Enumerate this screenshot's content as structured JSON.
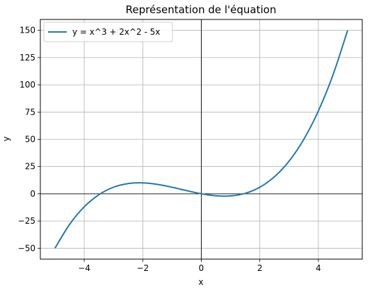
{
  "chart_data": {
    "type": "line",
    "title": "Représentation de l'équation",
    "xlabel": "x",
    "ylabel": "y",
    "xlim": [
      -5.5,
      5.5
    ],
    "ylim": [
      -60,
      160
    ],
    "xticks": [
      -4,
      -2,
      0,
      2,
      4
    ],
    "xtick_labels": [
      "−4",
      "−2",
      "0",
      "2",
      "4"
    ],
    "yticks": [
      -50,
      -25,
      0,
      25,
      50,
      75,
      100,
      125,
      150
    ],
    "ytick_labels": [
      "−50",
      "−25",
      "0",
      "25",
      "50",
      "75",
      "100",
      "125",
      "150"
    ],
    "grid": true,
    "zero_lines": true,
    "legend_position": "upper-left",
    "series": [
      {
        "name": "y = x^3 + 2x^2 - 5x",
        "color": "#1f77b4",
        "x": [
          -5,
          -4.5,
          -4,
          -3.5,
          -3,
          -2.5,
          -2,
          -1.5,
          -1,
          -0.5,
          0,
          0.5,
          1,
          1.5,
          2,
          2.5,
          3,
          3.5,
          4,
          4.5,
          5
        ],
        "y": [
          -50,
          -28.125,
          -12,
          -0.875,
          6,
          9.375,
          10,
          8.625,
          6,
          2.875,
          0,
          -1.875,
          -2,
          0.375,
          6,
          15.625,
          30,
          49.875,
          76,
          109.125,
          150
        ]
      }
    ]
  }
}
